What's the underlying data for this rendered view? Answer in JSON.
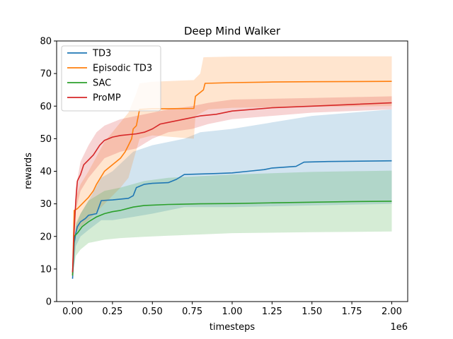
{
  "chart_data": {
    "type": "line",
    "title": "Deep Mind Walker",
    "xlabel": "timesteps",
    "ylabel": "rewards",
    "x_offset_label": "1e6",
    "xlim": [
      -0.1,
      2.1
    ],
    "ylim": [
      0,
      80
    ],
    "x_ticks": [
      0.0,
      0.25,
      0.5,
      0.75,
      1.0,
      1.25,
      1.5,
      1.75,
      2.0
    ],
    "x_tick_labels": [
      "0.00",
      "0.25",
      "0.50",
      "0.75",
      "1.00",
      "1.25",
      "1.50",
      "1.75",
      "2.00"
    ],
    "y_ticks": [
      0,
      10,
      20,
      30,
      40,
      50,
      60,
      70,
      80
    ],
    "y_tick_labels": [
      "0",
      "10",
      "20",
      "30",
      "40",
      "50",
      "60",
      "70",
      "80"
    ],
    "grid": false,
    "legend_position": "upper-left",
    "series": [
      {
        "name": "TD3",
        "color": "#1f77b4",
        "points": [
          [
            0.0,
            7
          ],
          [
            0.005,
            12
          ],
          [
            0.01,
            18
          ],
          [
            0.02,
            21
          ],
          [
            0.03,
            23
          ],
          [
            0.05,
            24.5
          ],
          [
            0.08,
            25.5
          ],
          [
            0.1,
            26.5
          ],
          [
            0.15,
            27
          ],
          [
            0.18,
            31
          ],
          [
            0.25,
            31.2
          ],
          [
            0.35,
            31.7
          ],
          [
            0.38,
            32.5
          ],
          [
            0.4,
            35
          ],
          [
            0.45,
            36
          ],
          [
            0.5,
            36.3
          ],
          [
            0.6,
            36.5
          ],
          [
            0.65,
            37.5
          ],
          [
            0.7,
            39
          ],
          [
            0.9,
            39.3
          ],
          [
            1.0,
            39.5
          ],
          [
            1.1,
            40
          ],
          [
            1.2,
            40.5
          ],
          [
            1.25,
            41
          ],
          [
            1.4,
            41.5
          ],
          [
            1.45,
            42.8
          ],
          [
            1.6,
            43
          ],
          [
            2.0,
            43.2
          ]
        ],
        "lower": [
          [
            0.0,
            7
          ],
          [
            0.02,
            17
          ],
          [
            0.05,
            20
          ],
          [
            0.1,
            22
          ],
          [
            0.18,
            25
          ],
          [
            0.25,
            25
          ],
          [
            0.38,
            26
          ],
          [
            0.5,
            27
          ],
          [
            0.7,
            29
          ],
          [
            1.0,
            29
          ],
          [
            1.5,
            29.5
          ],
          [
            2.0,
            30
          ]
        ],
        "upper": [
          [
            0.0,
            8
          ],
          [
            0.02,
            23
          ],
          [
            0.05,
            27
          ],
          [
            0.1,
            31
          ],
          [
            0.18,
            38
          ],
          [
            0.25,
            40
          ],
          [
            0.38,
            46
          ],
          [
            0.5,
            48
          ],
          [
            0.7,
            50
          ],
          [
            0.8,
            52
          ],
          [
            1.0,
            53
          ],
          [
            1.25,
            55
          ],
          [
            1.5,
            57
          ],
          [
            1.75,
            58
          ],
          [
            2.0,
            59
          ]
        ]
      },
      {
        "name": "Episodic TD3",
        "color": "#ff7f0e",
        "points": [
          [
            0.0,
            8
          ],
          [
            0.005,
            18
          ],
          [
            0.01,
            28
          ],
          [
            0.03,
            28.5
          ],
          [
            0.06,
            30
          ],
          [
            0.1,
            32
          ],
          [
            0.13,
            34
          ],
          [
            0.15,
            36
          ],
          [
            0.2,
            40
          ],
          [
            0.25,
            42
          ],
          [
            0.3,
            44
          ],
          [
            0.33,
            46
          ],
          [
            0.35,
            48
          ],
          [
            0.37,
            50
          ],
          [
            0.38,
            53
          ],
          [
            0.4,
            54
          ],
          [
            0.42,
            59
          ],
          [
            0.5,
            59.2
          ],
          [
            0.6,
            59.2
          ],
          [
            0.76,
            59.3
          ],
          [
            0.77,
            63
          ],
          [
            0.82,
            65
          ],
          [
            0.83,
            67
          ],
          [
            1.0,
            67.2
          ],
          [
            1.25,
            67.4
          ],
          [
            1.5,
            67.5
          ],
          [
            2.0,
            67.6
          ]
        ],
        "lower": [
          [
            0.0,
            8
          ],
          [
            0.02,
            21
          ],
          [
            0.05,
            23
          ],
          [
            0.1,
            25
          ],
          [
            0.2,
            30
          ],
          [
            0.3,
            35
          ],
          [
            0.35,
            38
          ],
          [
            0.42,
            50
          ],
          [
            0.5,
            51
          ],
          [
            0.76,
            50
          ],
          [
            0.77,
            57
          ],
          [
            0.85,
            59
          ],
          [
            1.0,
            59.5
          ],
          [
            1.5,
            59.8
          ],
          [
            2.0,
            60
          ]
        ],
        "upper": [
          [
            0.0,
            9
          ],
          [
            0.02,
            32
          ],
          [
            0.05,
            36
          ],
          [
            0.1,
            40
          ],
          [
            0.2,
            49
          ],
          [
            0.3,
            55
          ],
          [
            0.35,
            58
          ],
          [
            0.4,
            64
          ],
          [
            0.42,
            67
          ],
          [
            0.5,
            67.5
          ],
          [
            0.76,
            68
          ],
          [
            0.8,
            70
          ],
          [
            0.82,
            75
          ],
          [
            1.0,
            75.2
          ],
          [
            1.5,
            75.3
          ],
          [
            2.0,
            75.3
          ]
        ]
      },
      {
        "name": "SAC",
        "color": "#2ca02c",
        "points": [
          [
            0.0,
            8
          ],
          [
            0.005,
            14
          ],
          [
            0.01,
            20
          ],
          [
            0.03,
            21
          ],
          [
            0.06,
            23
          ],
          [
            0.1,
            24.5
          ],
          [
            0.15,
            26
          ],
          [
            0.2,
            27
          ],
          [
            0.25,
            27.6
          ],
          [
            0.3,
            28
          ],
          [
            0.38,
            29
          ],
          [
            0.45,
            29.5
          ],
          [
            0.6,
            29.8
          ],
          [
            0.8,
            30
          ],
          [
            1.0,
            30.1
          ],
          [
            1.25,
            30.3
          ],
          [
            1.5,
            30.5
          ],
          [
            1.75,
            30.7
          ],
          [
            2.0,
            30.8
          ]
        ],
        "lower": [
          [
            0.0,
            8
          ],
          [
            0.02,
            14
          ],
          [
            0.05,
            16
          ],
          [
            0.1,
            18
          ],
          [
            0.2,
            19
          ],
          [
            0.3,
            19.5
          ],
          [
            0.5,
            20
          ],
          [
            0.75,
            20.5
          ],
          [
            1.0,
            21
          ],
          [
            1.5,
            21.3
          ],
          [
            2.0,
            21.5
          ]
        ],
        "upper": [
          [
            0.0,
            9
          ],
          [
            0.02,
            24
          ],
          [
            0.05,
            27
          ],
          [
            0.1,
            31
          ],
          [
            0.2,
            34
          ],
          [
            0.3,
            35
          ],
          [
            0.45,
            37
          ],
          [
            0.6,
            38
          ],
          [
            0.8,
            38.5
          ],
          [
            1.0,
            39
          ],
          [
            1.5,
            39.8
          ],
          [
            2.0,
            40.2
          ]
        ]
      },
      {
        "name": "ProMP",
        "color": "#d62728",
        "points": [
          [
            0.0,
            9
          ],
          [
            0.01,
            22
          ],
          [
            0.02,
            31
          ],
          [
            0.03,
            37
          ],
          [
            0.05,
            39
          ],
          [
            0.07,
            42
          ],
          [
            0.1,
            43.5
          ],
          [
            0.13,
            45
          ],
          [
            0.17,
            48
          ],
          [
            0.2,
            49.5
          ],
          [
            0.25,
            50.5
          ],
          [
            0.3,
            51
          ],
          [
            0.4,
            51.5
          ],
          [
            0.45,
            52
          ],
          [
            0.5,
            53
          ],
          [
            0.55,
            54.5
          ],
          [
            0.6,
            55
          ],
          [
            0.7,
            56
          ],
          [
            0.8,
            57
          ],
          [
            0.9,
            57.5
          ],
          [
            1.0,
            58.5
          ],
          [
            1.25,
            59.5
          ],
          [
            1.5,
            60
          ],
          [
            1.75,
            60.5
          ],
          [
            2.0,
            61
          ]
        ],
        "lower": [
          [
            0.0,
            8
          ],
          [
            0.02,
            28
          ],
          [
            0.05,
            34
          ],
          [
            0.1,
            38
          ],
          [
            0.15,
            41
          ],
          [
            0.2,
            44
          ],
          [
            0.3,
            46
          ],
          [
            0.4,
            47
          ],
          [
            0.5,
            50
          ],
          [
            0.6,
            52
          ],
          [
            0.75,
            53
          ],
          [
            0.85,
            54.5
          ],
          [
            1.0,
            56
          ],
          [
            1.5,
            58
          ],
          [
            2.0,
            59
          ]
        ],
        "upper": [
          [
            0.0,
            10
          ],
          [
            0.02,
            35
          ],
          [
            0.05,
            43
          ],
          [
            0.1,
            48
          ],
          [
            0.15,
            52
          ],
          [
            0.2,
            54
          ],
          [
            0.3,
            56
          ],
          [
            0.4,
            57
          ],
          [
            0.5,
            58
          ],
          [
            0.6,
            59
          ],
          [
            0.75,
            60
          ],
          [
            0.85,
            61
          ],
          [
            1.0,
            62
          ],
          [
            1.5,
            62.5
          ],
          [
            2.0,
            63
          ]
        ]
      }
    ]
  }
}
